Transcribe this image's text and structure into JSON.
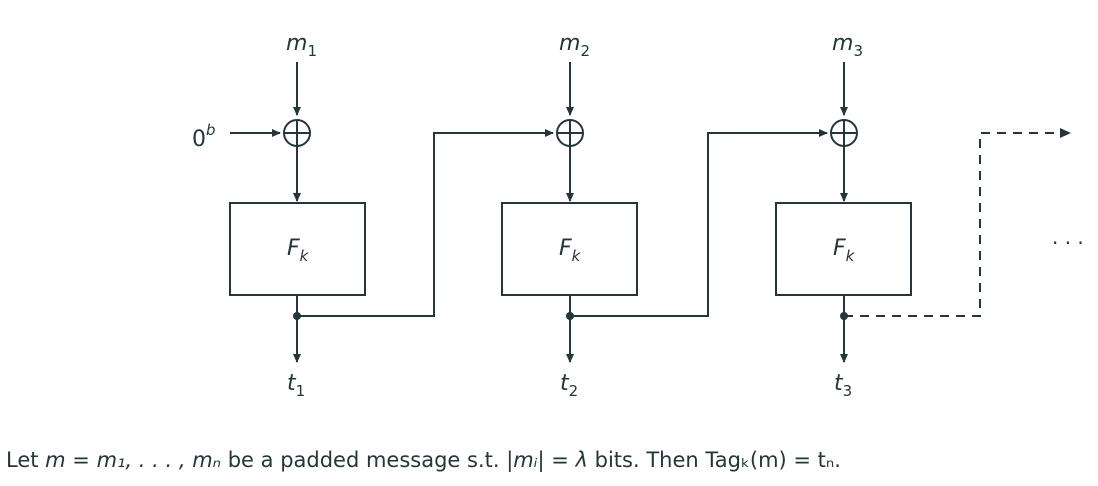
{
  "labels": {
    "messages": [
      {
        "base": "m",
        "sub": "1"
      },
      {
        "base": "m",
        "sub": "2"
      },
      {
        "base": "m",
        "sub": "3"
      }
    ],
    "tags": [
      {
        "base": "t",
        "sub": "1"
      },
      {
        "base": "t",
        "sub": "2"
      },
      {
        "base": "t",
        "sub": "3"
      }
    ],
    "iv": {
      "base": "0",
      "sup": "b"
    },
    "block": {
      "base": "F",
      "sub": "k"
    },
    "continuation": "· · ·"
  },
  "caption": {
    "intro": "Let ",
    "definition": "m = m₁, . . . , mₙ",
    "middle": " be a padded message s.t. ",
    "constraint": "|mᵢ| = λ",
    "middle2": " bits. Then ",
    "result": "Tagₖ(m) = tₙ",
    "end": "."
  }
}
